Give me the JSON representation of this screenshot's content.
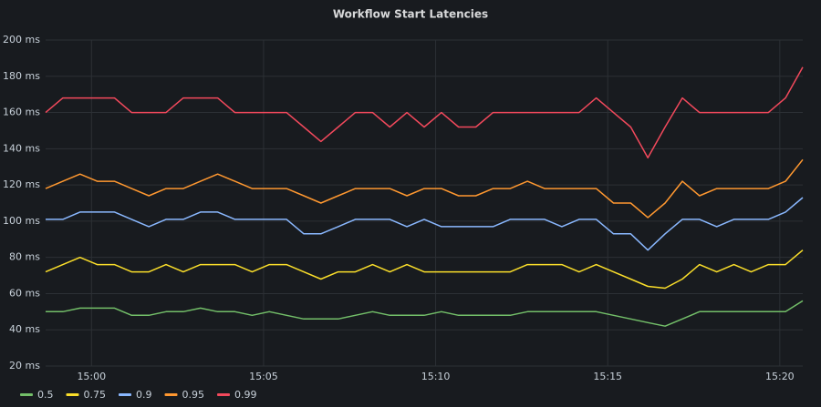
{
  "chart_data": {
    "type": "line",
    "title": "Workflow Start Latencies",
    "x": [
      "14:58:40",
      "14:59:10",
      "14:59:40",
      "15:00:10",
      "15:00:40",
      "15:01:10",
      "15:01:40",
      "15:02:10",
      "15:02:40",
      "15:03:10",
      "15:03:40",
      "15:04:10",
      "15:04:40",
      "15:05:10",
      "15:05:40",
      "15:06:10",
      "15:06:40",
      "15:07:10",
      "15:07:40",
      "15:08:10",
      "15:08:40",
      "15:09:10",
      "15:09:40",
      "15:10:10",
      "15:10:40",
      "15:11:10",
      "15:11:40",
      "15:12:10",
      "15:12:40",
      "15:13:10",
      "15:13:40",
      "15:14:10",
      "15:14:40",
      "15:15:10",
      "15:15:40",
      "15:16:10",
      "15:16:40",
      "15:17:10",
      "15:17:40",
      "15:18:10",
      "15:18:40",
      "15:19:10",
      "15:19:40",
      "15:20:10",
      "15:20:40"
    ],
    "series": [
      {
        "name": "0.5",
        "color": "#73bf69",
        "values": [
          50,
          50,
          52,
          52,
          52,
          48,
          48,
          50,
          50,
          52,
          50,
          50,
          48,
          50,
          48,
          46,
          46,
          46,
          48,
          50,
          48,
          48,
          48,
          50,
          48,
          48,
          48,
          48,
          50,
          50,
          50,
          50,
          50,
          48,
          46,
          44,
          42,
          46,
          50,
          50,
          50,
          50,
          50,
          50,
          56
        ]
      },
      {
        "name": "0.75",
        "color": "#fade2a",
        "values": [
          72,
          76,
          80,
          76,
          76,
          72,
          72,
          76,
          72,
          76,
          76,
          76,
          72,
          76,
          76,
          72,
          68,
          72,
          72,
          76,
          72,
          76,
          72,
          72,
          72,
          72,
          72,
          72,
          76,
          76,
          76,
          72,
          76,
          72,
          68,
          64,
          63,
          68,
          76,
          72,
          76,
          72,
          76,
          76,
          84
        ]
      },
      {
        "name": "0.9",
        "color": "#8ab8ff",
        "values": [
          101,
          101,
          105,
          105,
          105,
          101,
          97,
          101,
          101,
          105,
          105,
          101,
          101,
          101,
          101,
          93,
          93,
          97,
          101,
          101,
          101,
          97,
          101,
          97,
          97,
          97,
          97,
          101,
          101,
          101,
          97,
          101,
          101,
          93,
          93,
          84,
          93,
          101,
          101,
          97,
          101,
          101,
          101,
          105,
          113
        ]
      },
      {
        "name": "0.95",
        "color": "#ff9830",
        "values": [
          118,
          122,
          126,
          122,
          122,
          118,
          114,
          118,
          118,
          122,
          126,
          122,
          118,
          118,
          118,
          114,
          110,
          114,
          118,
          118,
          118,
          114,
          118,
          118,
          114,
          114,
          118,
          118,
          122,
          118,
          118,
          118,
          118,
          110,
          110,
          102,
          110,
          122,
          114,
          118,
          118,
          118,
          118,
          122,
          134
        ]
      },
      {
        "name": "0.99",
        "color": "#f2495c",
        "values": [
          160,
          168,
          168,
          168,
          168,
          160,
          160,
          160,
          168,
          168,
          168,
          160,
          160,
          160,
          160,
          152,
          144,
          152,
          160,
          160,
          152,
          160,
          152,
          160,
          152,
          152,
          160,
          160,
          160,
          160,
          160,
          160,
          168,
          160,
          152,
          135,
          152,
          168,
          160,
          160,
          160,
          160,
          160,
          168,
          185
        ]
      }
    ],
    "xlim": [
      "14:58:40",
      "15:20:40"
    ],
    "xticks": [
      "15:00",
      "15:05",
      "15:10",
      "15:15",
      "15:20"
    ],
    "ylim": [
      20,
      200
    ],
    "yticks": [
      {
        "value": 20,
        "label": "20 ms"
      },
      {
        "value": 40,
        "label": "40 ms"
      },
      {
        "value": 60,
        "label": "60 ms"
      },
      {
        "value": 80,
        "label": "80 ms"
      },
      {
        "value": 100,
        "label": "100 ms"
      },
      {
        "value": 120,
        "label": "120 ms"
      },
      {
        "value": 140,
        "label": "140 ms"
      },
      {
        "value": 160,
        "label": "160 ms"
      },
      {
        "value": 180,
        "label": "180 ms"
      },
      {
        "value": 200,
        "label": "200 ms"
      }
    ],
    "grid": true
  }
}
